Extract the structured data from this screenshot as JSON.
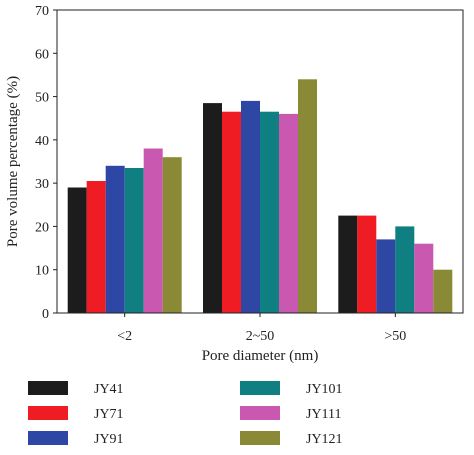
{
  "chart_data": {
    "type": "bar",
    "categories": [
      "<2",
      "2~50",
      ">50"
    ],
    "xlabel": "Pore diameter (nm)",
    "ylabel": "Pore volume percentage (%)",
    "ylim": [
      0,
      70
    ],
    "yticks": [
      0,
      10,
      20,
      30,
      40,
      50,
      60,
      70
    ],
    "grid": false,
    "legend_position": "bottom",
    "series": [
      {
        "name": "JY41",
        "color": "#1c1c1c",
        "values": [
          29,
          48.5,
          22.5
        ]
      },
      {
        "name": "JY71",
        "color": "#ef1c24",
        "values": [
          30.5,
          46.5,
          22.5
        ]
      },
      {
        "name": "JY91",
        "color": "#2e47a5",
        "values": [
          34,
          49,
          17
        ]
      },
      {
        "name": "JY101",
        "color": "#0f7f81",
        "values": [
          33.5,
          46.5,
          20
        ]
      },
      {
        "name": "JY111",
        "color": "#c958b0",
        "values": [
          38,
          46,
          16
        ]
      },
      {
        "name": "JY121",
        "color": "#8a8a36",
        "values": [
          36,
          54,
          10
        ]
      }
    ]
  }
}
